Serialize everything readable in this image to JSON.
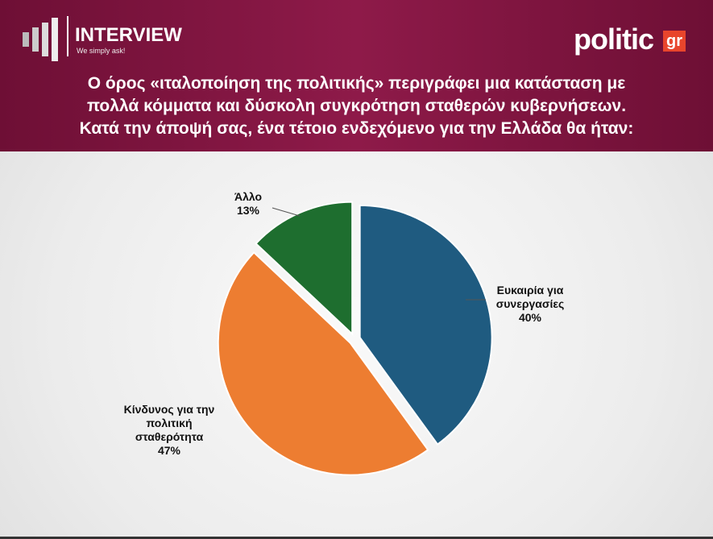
{
  "chart_data": {
    "type": "pie",
    "brand": {
      "left": "INTERVIEW",
      "tagline": "We simply ask!",
      "right": "politic",
      "right_badge": "gr"
    },
    "title": [
      "Ο όρος «ιταλοποίηση της πολιτικής» περιγράφει μια κατάσταση με",
      "πολλά κόμματα και δύσκολη συγκρότηση σταθερών κυβερνήσεων.",
      "Κατά την άποψή σας, ένα τέτοιο ενδεχόμενο για την Ελλάδα θα ήταν:"
    ],
    "categories": [
      "Ευκαιρία για συνεργασίες",
      "Κίνδυνος για την πολιτική σταθερότητα",
      "Άλλο"
    ],
    "values": [
      40,
      47,
      13
    ],
    "value_labels": [
      "40%",
      "47%",
      "13%"
    ],
    "colors": [
      "#1f5b80",
      "#ed7d31",
      "#1e6e2f"
    ]
  }
}
